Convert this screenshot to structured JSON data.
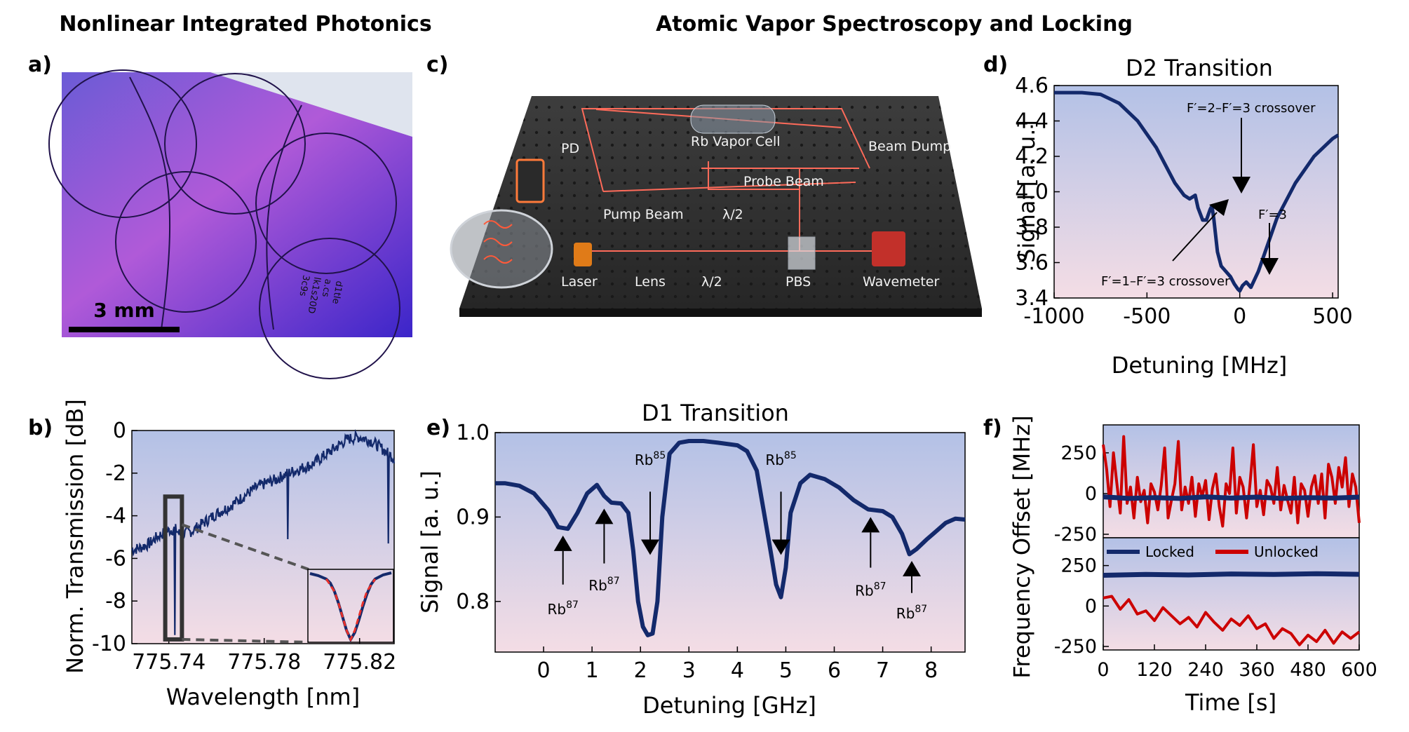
{
  "headers": {
    "left": "Nonlinear Integrated Photonics",
    "right": "Atomic Vapor Spectroscopy and Locking"
  },
  "panel_labels": {
    "a": "a)",
    "b": "b)",
    "c": "c)",
    "d": "d)",
    "e": "e)",
    "f": "f)"
  },
  "colors": {
    "series": "#13296b",
    "unlocked": "#cc0000",
    "fit": "#e8302a",
    "grad_top": "#b3c1e6",
    "grad_bottom": "#f2d9e2"
  },
  "panel_a": {
    "scale_bar": "3 mm",
    "chip_text": [
      "d1tle",
      "a.cs",
      "lk1s20D",
      "3c9s"
    ]
  },
  "panel_c": {
    "labels": {
      "pd": "PD",
      "cell": "Rb Vapor Cell",
      "dump": "Beam Dump",
      "probe": "Probe Beam",
      "pump": "Pump Beam",
      "half_wave_1": "λ/2",
      "laser": "Laser",
      "lens": "Lens",
      "half_wave_2": "λ/2",
      "pbs": "PBS",
      "wavemeter": "Wavemeter"
    }
  },
  "chart_data": [
    {
      "id": "b",
      "type": "line",
      "title": "",
      "xlabel": "Wavelength [nm]",
      "ylabel": "Norm. Transmission [dB]",
      "xlim": [
        775.7245,
        775.8345
      ],
      "ylim": [
        -10,
        0
      ],
      "xticks": [
        775.74,
        775.78,
        775.82
      ],
      "xtick_labels": [
        "775.74",
        "775.78",
        "775.82"
      ],
      "yticks": [
        0,
        -2,
        -4,
        -6,
        -8,
        -10
      ],
      "ytick_labels": [
        "0",
        "-2",
        "-4",
        "-6",
        "-8",
        "-10"
      ],
      "series": [
        {
          "name": "Transmission",
          "x": [
            775.7245,
            775.728,
            775.732,
            775.735,
            775.738,
            775.74,
            775.7425,
            775.745,
            775.75,
            775.755,
            775.76,
            775.765,
            775.77,
            775.775,
            775.78,
            775.785,
            775.79,
            775.795,
            775.8,
            775.805,
            775.81,
            775.815,
            775.82,
            775.825,
            775.83,
            775.8345
          ],
          "y": [
            -5.6,
            -5.5,
            -5.3,
            -5.0,
            -4.8,
            -4.7,
            -4.6,
            -4.9,
            -4.7,
            -4.3,
            -3.9,
            -3.6,
            -3.2,
            -2.8,
            -2.5,
            -2.3,
            -2.0,
            -1.8,
            -1.6,
            -1.2,
            -0.8,
            -0.4,
            -0.3,
            -0.5,
            -0.9,
            -1.3
          ]
        }
      ],
      "dips": [
        {
          "x": 775.7425,
          "depth_to": -9.6
        },
        {
          "x": 775.79,
          "depth_to": -5.1
        },
        {
          "x": 775.832,
          "depth_to": -5.3
        }
      ],
      "zoom_box": {
        "x_range": [
          775.7385,
          775.7455
        ],
        "y_range": [
          -9.8,
          -3.1
        ]
      },
      "inset": {
        "type": "line",
        "data": {
          "x": [
            -1,
            -0.8,
            -0.6,
            -0.5,
            -0.4,
            -0.3,
            -0.2,
            -0.1,
            0,
            0.1,
            0.2,
            0.3,
            0.4,
            0.5,
            0.6,
            0.8,
            1
          ],
          "y": [
            0.98,
            0.95,
            0.9,
            0.84,
            0.72,
            0.55,
            0.35,
            0.15,
            0.02,
            0.12,
            0.3,
            0.5,
            0.68,
            0.82,
            0.9,
            0.96,
            0.99
          ]
        },
        "fit": {
          "x": [
            -0.6,
            -0.4,
            -0.3,
            -0.2,
            -0.1,
            0,
            0.1,
            0.2,
            0.3,
            0.4,
            0.6
          ],
          "y": [
            0.9,
            0.72,
            0.55,
            0.35,
            0.15,
            0.02,
            0.15,
            0.35,
            0.55,
            0.72,
            0.9
          ]
        }
      }
    },
    {
      "id": "d",
      "type": "line",
      "title": "D2 Transition",
      "xlabel": "Detuning [MHz]",
      "ylabel": "Signal [a. u.]",
      "xlim": [
        -1000,
        530
      ],
      "ylim": [
        3.4,
        4.6
      ],
      "xticks": [
        -1000,
        -500,
        0,
        500
      ],
      "xtick_labels": [
        "-1000",
        "-500",
        "0",
        "500"
      ],
      "yticks": [
        3.4,
        3.6,
        3.8,
        4.0,
        4.2,
        4.4,
        4.6
      ],
      "ytick_labels": [
        "3.4",
        "3.6",
        "3.8",
        "4.0",
        "4.2",
        "4.4",
        "4.6"
      ],
      "series": [
        {
          "name": "Signal",
          "x": [
            -1000,
            -850,
            -750,
            -650,
            -550,
            -450,
            -350,
            -300,
            -270,
            -240,
            -225,
            -200,
            -180,
            -160,
            -150,
            -140,
            -120,
            -100,
            -75,
            -50,
            -30,
            -10,
            0,
            15,
            35,
            60,
            100,
            150,
            200,
            300,
            400,
            500,
            530
          ],
          "y": [
            4.56,
            4.56,
            4.55,
            4.5,
            4.4,
            4.25,
            4.05,
            3.98,
            3.96,
            3.98,
            3.91,
            3.84,
            3.84,
            3.9,
            3.92,
            3.85,
            3.66,
            3.58,
            3.55,
            3.52,
            3.48,
            3.45,
            3.44,
            3.47,
            3.49,
            3.46,
            3.55,
            3.7,
            3.85,
            4.05,
            4.2,
            4.3,
            4.32
          ]
        }
      ],
      "annotations": [
        {
          "text": "F′=2–F′=3 crossover",
          "x": -160
        },
        {
          "text": "F′=3",
          "x": 0
        },
        {
          "text": "F′=1–F′=3 crossover",
          "x": -250
        }
      ]
    },
    {
      "id": "e",
      "type": "line",
      "title": "D1 Transition",
      "xlabel": "Detuning [GHz]",
      "ylabel": "Signal [a. u.]",
      "xlim": [
        -1.0,
        8.7
      ],
      "ylim": [
        0.74,
        1.0
      ],
      "xticks": [
        0,
        1,
        2,
        3,
        4,
        5,
        6,
        7,
        8
      ],
      "xtick_labels": [
        "0",
        "1",
        "2",
        "3",
        "4",
        "5",
        "6",
        "7",
        "8"
      ],
      "yticks": [
        0.8,
        0.9,
        1.0
      ],
      "ytick_labels": [
        "0.8",
        "0.9",
        "1.0"
      ],
      "series": [
        {
          "name": "Signal",
          "x": [
            -1.0,
            -0.8,
            -0.5,
            -0.2,
            0.1,
            0.3,
            0.5,
            0.7,
            0.9,
            1.1,
            1.25,
            1.4,
            1.6,
            1.75,
            1.85,
            1.95,
            2.05,
            2.15,
            2.25,
            2.35,
            2.45,
            2.6,
            2.8,
            3.0,
            3.3,
            3.6,
            4.0,
            4.2,
            4.4,
            4.55,
            4.7,
            4.8,
            4.9,
            5.0,
            5.1,
            5.3,
            5.5,
            5.8,
            6.1,
            6.4,
            6.7,
            7.0,
            7.2,
            7.4,
            7.55,
            7.7,
            7.9,
            8.1,
            8.3,
            8.5,
            8.7
          ],
          "y": [
            0.94,
            0.94,
            0.937,
            0.928,
            0.908,
            0.888,
            0.886,
            0.905,
            0.928,
            0.938,
            0.925,
            0.917,
            0.916,
            0.905,
            0.86,
            0.8,
            0.77,
            0.76,
            0.762,
            0.8,
            0.9,
            0.975,
            0.988,
            0.99,
            0.99,
            0.988,
            0.985,
            0.978,
            0.955,
            0.905,
            0.855,
            0.82,
            0.805,
            0.84,
            0.905,
            0.94,
            0.95,
            0.945,
            0.935,
            0.92,
            0.909,
            0.907,
            0.9,
            0.88,
            0.856,
            0.862,
            0.873,
            0.883,
            0.893,
            0.898,
            0.897
          ]
        }
      ],
      "annotations": [
        {
          "text": "Rb87",
          "x": 0.4,
          "dir": "up"
        },
        {
          "text": "Rb87",
          "x": 1.25,
          "dir": "up"
        },
        {
          "text": "Rb85",
          "x": 2.2,
          "dir": "down"
        },
        {
          "text": "Rb85",
          "x": 4.9,
          "dir": "down"
        },
        {
          "text": "Rb87",
          "x": 6.75,
          "dir": "up"
        },
        {
          "text": "Rb87",
          "x": 7.6,
          "dir": "up"
        }
      ]
    },
    {
      "id": "f",
      "type": "line",
      "title": "",
      "xlabel": "Time [s]",
      "ylabel": "Frequency Offset [MHz]",
      "xlim": [
        0,
        600
      ],
      "xticks": [
        0,
        120,
        240,
        360,
        480,
        600
      ],
      "xtick_labels": [
        "0",
        "120",
        "240",
        "360",
        "480",
        "600"
      ],
      "legend": [
        "Locked",
        "Unlocked"
      ],
      "subplots": [
        {
          "ylim": [
            -250,
            400
          ],
          "yticks": [
            250,
            0,
            -250
          ],
          "ytick_labels": [
            "250",
            "0",
            "-250"
          ],
          "series": [
            {
              "name": "Unlocked",
              "x": [
                0,
                8,
                16,
                24,
                32,
                40,
                48,
                56,
                64,
                72,
                80,
                88,
                96,
                104,
                112,
                120,
                128,
                136,
                144,
                152,
                160,
                168,
                176,
                184,
                192,
                200,
                208,
                216,
                224,
                232,
                240,
                248,
                256,
                264,
                272,
                280,
                288,
                296,
                304,
                312,
                320,
                328,
                336,
                344,
                352,
                360,
                368,
                376,
                384,
                392,
                400,
                408,
                416,
                424,
                432,
                440,
                448,
                456,
                464,
                472,
                480,
                488,
                496,
                504,
                512,
                520,
                528,
                536,
                544,
                552,
                560,
                568,
                576,
                584,
                592,
                600
              ],
              "y": [
                300,
                150,
                -80,
                250,
                60,
                -120,
                350,
                -60,
                40,
                -150,
                100,
                -50,
                20,
                -180,
                60,
                10,
                -100,
                50,
                280,
                -150,
                -40,
                60,
                320,
                -100,
                40,
                -60,
                100,
                -140,
                60,
                -20,
                80,
                -160,
                30,
                120,
                -80,
                -200,
                60,
                0,
                280,
                -120,
                100,
                40,
                -150,
                60,
                300,
                -80,
                20,
                -130,
                80,
                40,
                -60,
                160,
                -100,
                50,
                -40,
                -120,
                100,
                -180,
                60,
                20,
                -140,
                40,
                110,
                -60,
                120,
                -150,
                180,
                100,
                -60,
                160,
                40,
                220,
                -80,
                120,
                40,
                -180
              ]
            },
            {
              "name": "Locked",
              "x": [
                0,
                60,
                120,
                180,
                240,
                300,
                360,
                420,
                480,
                540,
                600
              ],
              "y": [
                -20,
                -30,
                -25,
                -30,
                -20,
                -28,
                -22,
                -30,
                -25,
                -28,
                -22
              ]
            }
          ]
        },
        {
          "ylim": [
            -250,
            400
          ],
          "yticks": [
            250,
            0,
            -250
          ],
          "ytick_labels": [
            "250",
            "0",
            "-250"
          ],
          "series": [
            {
              "name": "Unlocked",
              "x": [
                0,
                20,
                40,
                60,
                80,
                100,
                120,
                140,
                160,
                180,
                200,
                220,
                240,
                260,
                280,
                300,
                320,
                340,
                360,
                380,
                400,
                420,
                440,
                460,
                480,
                500,
                520,
                540,
                560,
                580,
                600
              ],
              "y": [
                50,
                60,
                -20,
                40,
                -50,
                -30,
                -90,
                -10,
                -60,
                -110,
                -70,
                -130,
                -40,
                -100,
                -150,
                -80,
                -120,
                -60,
                -140,
                -110,
                -200,
                -140,
                -170,
                -240,
                -180,
                -220,
                -150,
                -230,
                -160,
                -200,
                -160
              ]
            },
            {
              "name": "Locked",
              "x": [
                0,
                100,
                200,
                300,
                400,
                500,
                600
              ],
              "y": [
                190,
                195,
                192,
                198,
                195,
                200,
                196
              ]
            }
          ]
        }
      ]
    }
  ]
}
